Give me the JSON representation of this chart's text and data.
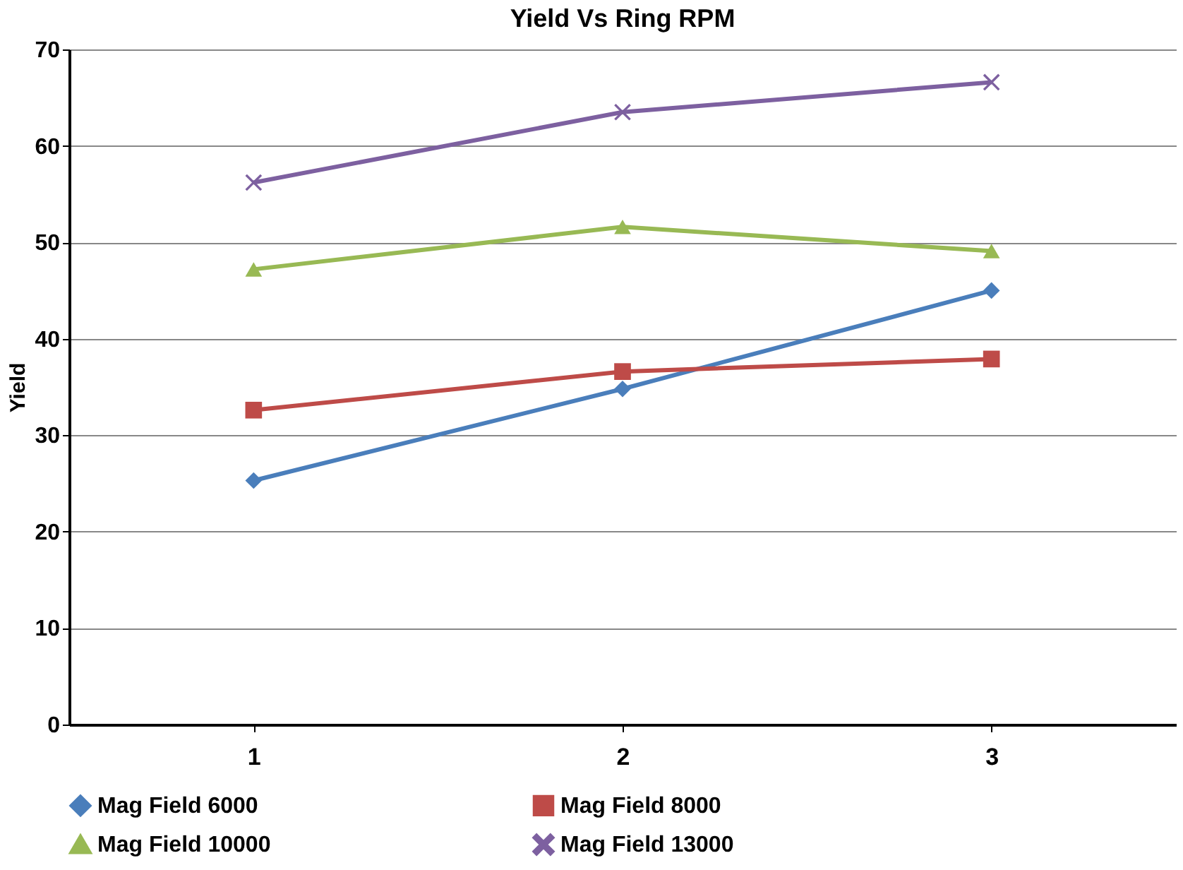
{
  "chart_data": {
    "type": "line",
    "title": "Yield Vs Ring  RPM",
    "ylabel": "Yield",
    "categories": [
      "1",
      "2",
      "3"
    ],
    "series": [
      {
        "name": "Mag Field 6000",
        "color": "#4a7ebb",
        "marker": "diamond",
        "values": [
          25.3,
          34.8,
          45.0
        ]
      },
      {
        "name": "Mag Field 8000",
        "color": "#be4b48",
        "marker": "square",
        "values": [
          32.6,
          36.6,
          37.9
        ]
      },
      {
        "name": "Mag Field 10000",
        "color": "#98b954",
        "marker": "triangle",
        "values": [
          47.2,
          51.6,
          49.1
        ]
      },
      {
        "name": "Mag Field 13000",
        "color": "#7d60a0",
        "marker": "cross",
        "values": [
          56.2,
          63.5,
          66.6
        ]
      }
    ],
    "ylim": [
      0,
      70
    ],
    "yticks": [
      0,
      10,
      20,
      30,
      40,
      50,
      60,
      70
    ],
    "grid": "y",
    "legend": "bottom",
    "line_style": "solid"
  }
}
